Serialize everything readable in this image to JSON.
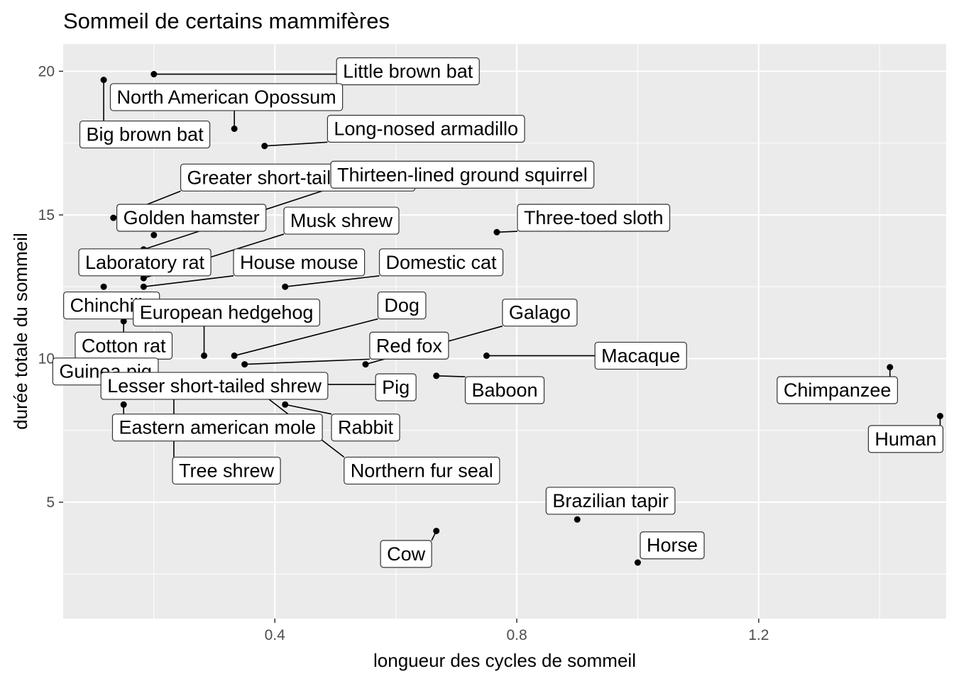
{
  "chart_data": {
    "type": "scatter",
    "title": "Sommeil de certains mammifères",
    "xlabel": "longueur des cycles de sommeil",
    "ylabel": "durée totale du sommeil",
    "xlim": [
      0.05,
      1.51
    ],
    "ylim": [
      0.95,
      20.95
    ],
    "x_ticks": [
      0.4,
      0.8,
      1.2
    ],
    "x_tick_labels": [
      "0.4",
      "0.8",
      "1.2"
    ],
    "y_ticks": [
      5,
      10,
      15,
      20
    ],
    "y_tick_labels": [
      "5",
      "10",
      "15",
      "20"
    ],
    "grid": true,
    "legend": "none",
    "point_color": "#000000",
    "panel_background": "#ebebeb",
    "points": [
      {
        "label": "Little brown bat",
        "x": 0.2,
        "y": 19.9,
        "lx": 0.62,
        "ly": 20.0
      },
      {
        "label": "Big brown bat",
        "x": 0.117,
        "y": 19.7,
        "lx": 0.185,
        "ly": 17.8
      },
      {
        "label": "North American Opossum",
        "x": 0.333,
        "y": 18.0,
        "lx": 0.32,
        "ly": 19.1
      },
      {
        "label": "Long-nosed armadillo",
        "x": 0.383,
        "y": 17.4,
        "lx": 0.65,
        "ly": 18.0
      },
      {
        "label": "Greater short-tailed shrew",
        "x": 0.133,
        "y": 14.9,
        "lx": 0.438,
        "ly": 16.3
      },
      {
        "label": "Thirteen-lined ground squirrel",
        "x": 0.183,
        "y": 13.8,
        "lx": 0.71,
        "ly": 16.4
      },
      {
        "label": "Golden hamster",
        "x": 0.2,
        "y": 14.3,
        "lx": 0.262,
        "ly": 14.9
      },
      {
        "label": "Musk shrew",
        "x": 0.183,
        "y": 12.8,
        "lx": 0.51,
        "ly": 14.8
      },
      {
        "label": "Three-toed sloth",
        "x": 0.767,
        "y": 14.4,
        "lx": 0.927,
        "ly": 14.9
      },
      {
        "label": "Laboratory rat",
        "x": 0.183,
        "y": 13.0,
        "lx": 0.185,
        "ly": 13.35
      },
      {
        "label": "House mouse",
        "x": 0.183,
        "y": 12.5,
        "lx": 0.44,
        "ly": 13.35
      },
      {
        "label": "Domestic cat",
        "x": 0.417,
        "y": 12.5,
        "lx": 0.675,
        "ly": 13.35
      },
      {
        "label": "Chinchilla",
        "x": 0.117,
        "y": 12.5,
        "lx": 0.13,
        "ly": 11.85
      },
      {
        "label": "European hedgehog",
        "x": 0.283,
        "y": 10.1,
        "lx": 0.32,
        "ly": 11.6
      },
      {
        "label": "Dog",
        "x": 0.333,
        "y": 10.1,
        "lx": 0.61,
        "ly": 11.85
      },
      {
        "label": "Galago",
        "x": 0.55,
        "y": 9.8,
        "lx": 0.838,
        "ly": 11.6
      },
      {
        "label": "Cotton rat",
        "x": 0.15,
        "y": 11.3,
        "lx": 0.15,
        "ly": 10.45
      },
      {
        "label": "Red fox",
        "x": 0.35,
        "y": 9.8,
        "lx": 0.622,
        "ly": 10.45
      },
      {
        "label": "Macaque",
        "x": 0.75,
        "y": 10.1,
        "lx": 1.005,
        "ly": 10.1
      },
      {
        "label": "Guinea pig",
        "x": 0.117,
        "y": 9.4,
        "lx": 0.12,
        "ly": 9.55
      },
      {
        "label": "Baboon",
        "x": 0.667,
        "y": 9.4,
        "lx": 0.78,
        "ly": 8.9
      },
      {
        "label": "Pig",
        "x": 0.417,
        "y": 9.1,
        "lx": 0.6,
        "ly": 9.0
      },
      {
        "label": "Lesser short-tailed shrew",
        "x": 0.15,
        "y": 9.1,
        "lx": 0.3,
        "ly": 9.05
      },
      {
        "label": "Chimpanzee",
        "x": 1.417,
        "y": 9.7,
        "lx": 1.33,
        "ly": 8.9
      },
      {
        "label": "Rabbit",
        "x": 0.417,
        "y": 8.4,
        "lx": 0.55,
        "ly": 7.6
      },
      {
        "label": "Eastern american mole",
        "x": 0.15,
        "y": 8.4,
        "lx": 0.305,
        "ly": 7.6
      },
      {
        "label": "Human",
        "x": 1.5,
        "y": 8.0,
        "lx": 1.443,
        "ly": 7.2
      },
      {
        "label": "Tree shrew",
        "x": 0.233,
        "y": 8.9,
        "lx": 0.32,
        "ly": 6.1
      },
      {
        "label": "Northern fur seal",
        "x": 0.383,
        "y": 8.7,
        "lx": 0.643,
        "ly": 6.1
      },
      {
        "label": "Brazilian tapir",
        "x": 0.9,
        "y": 4.4,
        "lx": 0.955,
        "ly": 5.05
      },
      {
        "label": "Horse",
        "x": 1.0,
        "y": 2.9,
        "lx": 1.057,
        "ly": 3.5
      },
      {
        "label": "Cow",
        "x": 0.667,
        "y": 4.0,
        "lx": 0.617,
        "ly": 3.2
      }
    ]
  }
}
